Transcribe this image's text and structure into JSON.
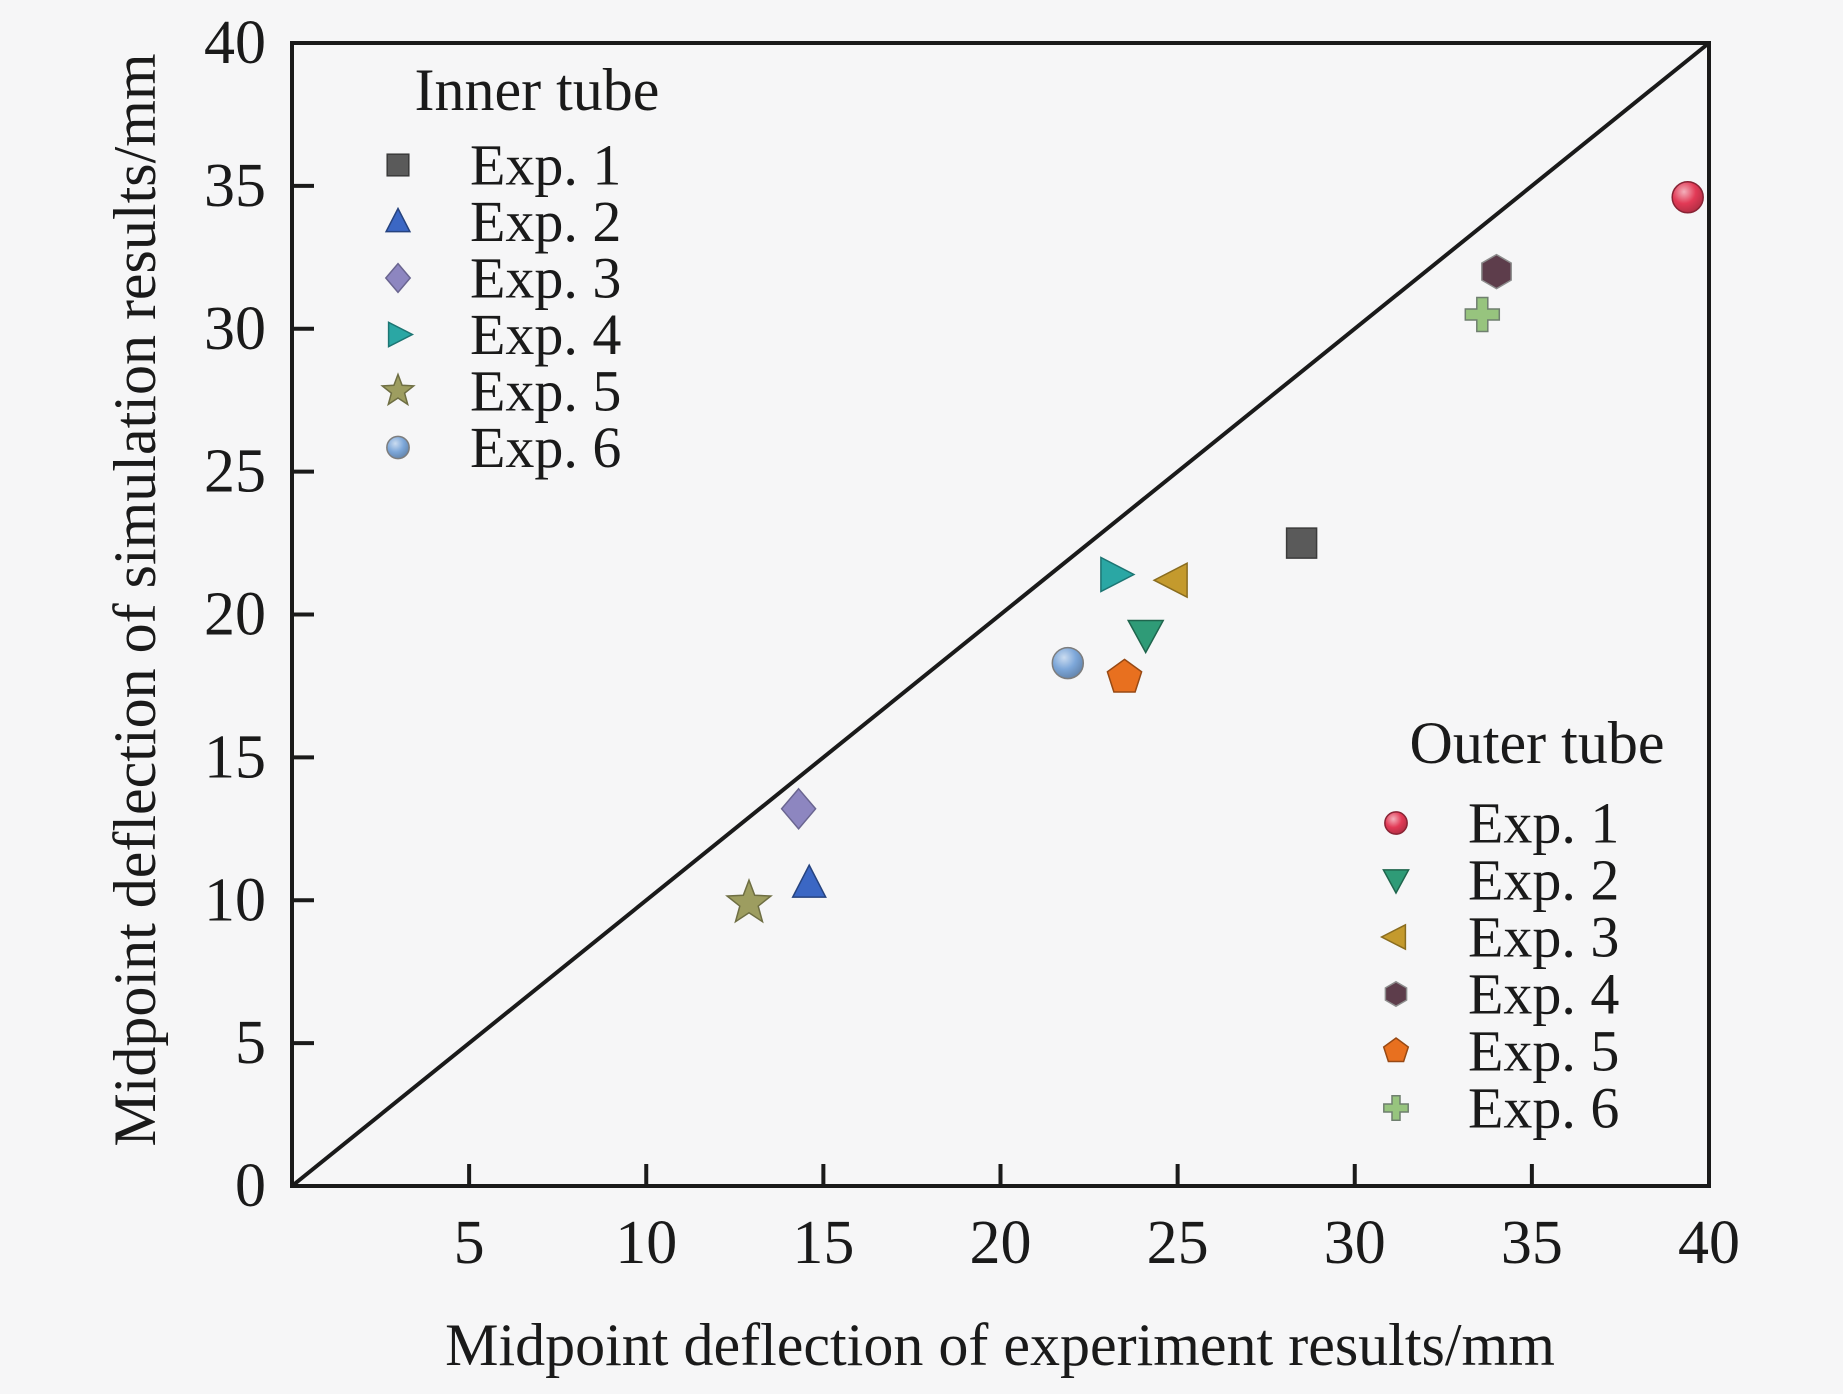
{
  "figure": {
    "background_color": "#f6f6f7",
    "text_color": "#1a1a1a",
    "frame_color": "#1a1a1a"
  },
  "chart_data": {
    "type": "scatter",
    "title": "",
    "xlabel": "Midpoint deflection of experiment results/mm",
    "ylabel": "Midpoint deflection of simulation results/mm",
    "xlim": [
      0,
      40
    ],
    "ylim": [
      0,
      40
    ],
    "x_ticks": [
      5,
      10,
      15,
      20,
      25,
      30,
      35,
      40
    ],
    "y_ticks": [
      0,
      5,
      10,
      15,
      20,
      25,
      30,
      35,
      40
    ],
    "grid": false,
    "reference_line": {
      "type": "identity",
      "from": [
        0,
        0
      ],
      "to": [
        40,
        40
      ],
      "color": "#1a1a1a"
    },
    "legends": [
      {
        "id": "inner",
        "title": "Inner tube",
        "position": "top-left"
      },
      {
        "id": "outer",
        "title": "Outer tube",
        "position": "bottom-right"
      }
    ],
    "series": [
      {
        "group": "inner",
        "name": "Exp. 1",
        "marker": "square",
        "color": "#5a5a5a",
        "points": [
          [
            28.5,
            22.5
          ]
        ]
      },
      {
        "group": "inner",
        "name": "Exp. 2",
        "marker": "triangle-up",
        "color": "#3b67c4",
        "points": [
          [
            14.6,
            10.6
          ]
        ]
      },
      {
        "group": "inner",
        "name": "Exp. 3",
        "marker": "diamond",
        "color": "#8d86c0",
        "points": [
          [
            14.3,
            13.2
          ]
        ]
      },
      {
        "group": "inner",
        "name": "Exp. 4",
        "marker": "triangle-right",
        "color": "#2aa7a4",
        "points": [
          [
            23.2,
            21.4
          ]
        ]
      },
      {
        "group": "inner",
        "name": "Exp. 5",
        "marker": "star",
        "color": "#9d9d60",
        "points": [
          [
            12.9,
            9.9
          ]
        ]
      },
      {
        "group": "inner",
        "name": "Exp. 6",
        "marker": "sphere",
        "color": "#7da7d9",
        "points": [
          [
            21.9,
            18.3
          ]
        ]
      },
      {
        "group": "outer",
        "name": "Exp. 1",
        "marker": "circle",
        "color": "#e23a56",
        "points": [
          [
            39.4,
            34.6
          ]
        ]
      },
      {
        "group": "outer",
        "name": "Exp. 2",
        "marker": "triangle-down",
        "color": "#2f9b77",
        "points": [
          [
            24.1,
            19.3
          ]
        ]
      },
      {
        "group": "outer",
        "name": "Exp. 3",
        "marker": "triangle-left",
        "color": "#c49a2d",
        "points": [
          [
            24.9,
            21.2
          ]
        ]
      },
      {
        "group": "outer",
        "name": "Exp. 4",
        "marker": "hexagon",
        "color": "#5d3d4b",
        "points": [
          [
            34.0,
            32.0
          ]
        ]
      },
      {
        "group": "outer",
        "name": "Exp. 5",
        "marker": "pentagon",
        "color": "#e8701f",
        "points": [
          [
            23.5,
            17.8
          ]
        ]
      },
      {
        "group": "outer",
        "name": "Exp. 6",
        "marker": "plus",
        "color": "#97c47e",
        "points": [
          [
            33.6,
            30.5
          ]
        ]
      }
    ]
  }
}
